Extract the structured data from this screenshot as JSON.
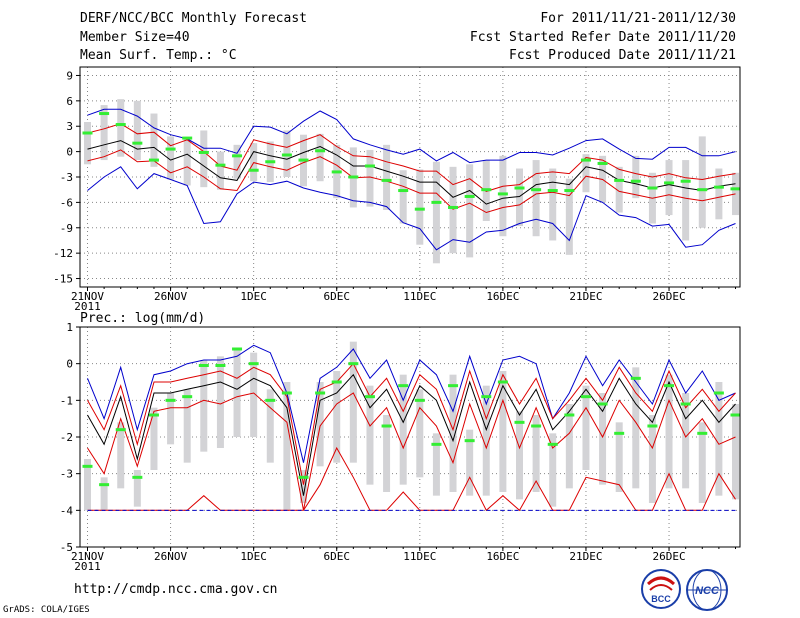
{
  "header": {
    "title": "DERF/NCC/BCC Monthly Forecast",
    "member_size": "Member Size=40",
    "variable": "Mean Surf. Temp.: °C",
    "period": "For 2011/11/21-2011/12/30",
    "started_refer": "Fcst Started Refer Date 2011/11/20",
    "produced": "Fcst Produced Date 2011/11/21"
  },
  "footer": {
    "url": "http://cmdp.ncc.cma.gov.cn",
    "credit": "GrADS: COLA/IGES",
    "logo_left_text": "BCC",
    "logo_right_text": "NCC"
  },
  "colors": {
    "mean": "#000000",
    "std_band": "#dd0000",
    "extreme": "#0000cc",
    "box": "#d3d3d6",
    "median": "#33ee33",
    "grid": "#888888"
  },
  "chart_data": [
    {
      "type": "line",
      "title": "",
      "ylabel": "Mean Surf. Temp.: °C",
      "x_tick_labels": [
        "21NOV\n2011",
        "26NOV",
        "1DEC",
        "6DEC",
        "11DEC",
        "16DEC",
        "21DEC",
        "26DEC"
      ],
      "x_tick_days": [
        1,
        6,
        11,
        16,
        21,
        26,
        31,
        36
      ],
      "y_ticks": [
        9,
        6,
        3,
        0,
        -3,
        -6,
        -9,
        -12,
        -15
      ],
      "ylim": [
        -16,
        10
      ],
      "days": [
        1,
        2,
        3,
        4,
        5,
        6,
        7,
        8,
        9,
        10,
        11,
        12,
        13,
        14,
        15,
        16,
        17,
        18,
        19,
        20,
        21,
        22,
        23,
        24,
        25,
        26,
        27,
        28,
        29,
        30,
        31,
        32,
        33,
        34,
        35,
        36,
        37,
        38,
        39,
        40
      ],
      "series": [
        {
          "name": "mean",
          "color": "black",
          "values": [
            0.3,
            0.8,
            1.3,
            0.3,
            0.5,
            -1.0,
            -0.3,
            -1.7,
            -3.1,
            -3.4,
            0.0,
            -0.5,
            -0.9,
            -0.1,
            0.6,
            -0.4,
            -1.7,
            -1.7,
            -2.3,
            -2.9,
            -3.6,
            -3.6,
            -5.4,
            -4.6,
            -6.2,
            -5.5,
            -5.3,
            -3.9,
            -3.6,
            -3.9,
            -1.8,
            -2.2,
            -3.4,
            -3.8,
            -4.3,
            -3.9,
            -4.3,
            -4.6,
            -4.1,
            -3.8
          ]
        },
        {
          "name": "mean+sd",
          "color": "red",
          "values": [
            2.2,
            2.7,
            3.3,
            2.1,
            2.3,
            0.7,
            1.4,
            0.0,
            -1.7,
            -2.2,
            1.4,
            0.9,
            0.5,
            1.3,
            2.0,
            0.6,
            -0.5,
            -0.6,
            -1.2,
            -1.7,
            -2.3,
            -2.3,
            -3.9,
            -3.2,
            -4.7,
            -4.1,
            -3.9,
            -2.6,
            -2.4,
            -2.6,
            -0.7,
            -1.0,
            -2.1,
            -2.6,
            -3.0,
            -2.6,
            -3.1,
            -3.3,
            -2.9,
            -2.6
          ]
        },
        {
          "name": "mean-sd",
          "color": "red",
          "values": [
            -1.1,
            -0.6,
            0.2,
            -1.2,
            -1.1,
            -2.5,
            -1.8,
            -3.0,
            -4.4,
            -4.6,
            -1.3,
            -1.8,
            -2.2,
            -1.3,
            -0.6,
            -1.6,
            -3.1,
            -3.0,
            -3.5,
            -4.1,
            -4.9,
            -4.9,
            -6.8,
            -6.1,
            -7.2,
            -6.6,
            -6.3,
            -5.0,
            -4.8,
            -5.2,
            -2.9,
            -3.3,
            -4.7,
            -5.1,
            -5.5,
            -5.1,
            -5.5,
            -5.8,
            -5.4,
            -5.0
          ]
        },
        {
          "name": "max",
          "color": "blue",
          "values": [
            4.3,
            5.0,
            5.0,
            4.2,
            2.8,
            2.0,
            1.5,
            0.4,
            0.4,
            -0.2,
            3.0,
            2.9,
            2.1,
            3.6,
            4.8,
            3.8,
            1.5,
            0.8,
            0.2,
            -0.3,
            0.3,
            -1.1,
            -0.1,
            -1.3,
            -1.0,
            -1.0,
            -0.1,
            -0.1,
            -0.4,
            0.4,
            1.3,
            1.5,
            0.3,
            -0.8,
            -0.9,
            0.5,
            0.5,
            -0.5,
            -0.5,
            0.0
          ]
        },
        {
          "name": "min",
          "color": "blue",
          "values": [
            -4.6,
            -3.0,
            -1.8,
            -4.4,
            -2.6,
            -3.3,
            -4.0,
            -8.5,
            -8.3,
            -5.0,
            -3.6,
            -3.9,
            -3.5,
            -4.3,
            -4.8,
            -5.2,
            -5.8,
            -6.0,
            -6.5,
            -8.4,
            -9.1,
            -11.6,
            -10.4,
            -10.7,
            -9.5,
            -9.3,
            -8.5,
            -8.0,
            -8.5,
            -10.5,
            -5.2,
            -6.0,
            -7.5,
            -7.8,
            -8.8,
            -8.6,
            -11.3,
            -11.0,
            -9.3,
            -8.5
          ]
        },
        {
          "name": "median",
          "color": "green",
          "values": [
            2.2,
            4.5,
            3.2,
            1.0,
            -1.0,
            0.3,
            1.6,
            -0.1,
            -1.6,
            -0.5,
            -2.2,
            -1.2,
            -0.4,
            -1.0,
            0.1,
            -2.4,
            -3.0,
            -1.7,
            -3.4,
            -4.6,
            -6.8,
            -6.0,
            -6.6,
            -5.3,
            -4.5,
            -5.0,
            -4.3,
            -4.5,
            -4.6,
            -4.6,
            -1.0,
            -1.4,
            -3.4,
            -3.5,
            -4.3,
            -3.7,
            -3.5,
            -4.5,
            -4.2,
            -4.4
          ]
        },
        {
          "name": "box_top",
          "color": "gray",
          "values": [
            3.5,
            5.5,
            6.2,
            6.0,
            4.5,
            1.8,
            1.5,
            2.5,
            0.0,
            0.8,
            1.0,
            1.2,
            2.5,
            2.0,
            2.1,
            0.8,
            0.5,
            0.2,
            0.8,
            -2.2,
            -2.1,
            -1.2,
            -1.8,
            -1.5,
            -1.0,
            -0.5,
            -2.0,
            -1.0,
            -2.0,
            -3.2,
            -0.3,
            -0.5,
            -1.8,
            -0.5,
            -2.5,
            -1.0,
            -1.0,
            1.8,
            -2.0,
            -2.5
          ]
        },
        {
          "name": "box_bottom",
          "color": "gray",
          "values": [
            -1.5,
            -1.0,
            -0.6,
            -1.0,
            -1.8,
            -3.3,
            -4.0,
            -4.2,
            -4.5,
            -3.2,
            -3.5,
            -3.6,
            -3.0,
            -4.1,
            -3.5,
            -5.5,
            -6.6,
            -6.5,
            -6.9,
            -8.5,
            -11.0,
            -13.2,
            -12.0,
            -12.5,
            -8.2,
            -10.0,
            -8.8,
            -10.0,
            -10.5,
            -12.2,
            -4.8,
            -6.0,
            -7.2,
            -5.5,
            -8.5,
            -7.5,
            -10.5,
            -9.0,
            -8.0,
            -7.5
          ]
        }
      ]
    },
    {
      "type": "line",
      "title": "Prec.: log(mm/d)",
      "ylabel": "Prec.: log(mm/d)",
      "x_tick_labels": [
        "21NOV\n2011",
        "26NOV",
        "1DEC",
        "6DEC",
        "11DEC",
        "16DEC",
        "21DEC",
        "26DEC"
      ],
      "x_tick_days": [
        1,
        6,
        11,
        16,
        21,
        26,
        31,
        36
      ],
      "y_ticks": [
        1,
        0,
        -1,
        -2,
        -3,
        -4,
        -5
      ],
      "ylim": [
        -5,
        1
      ],
      "days": [
        1,
        2,
        3,
        4,
        5,
        6,
        7,
        8,
        9,
        10,
        11,
        12,
        13,
        14,
        15,
        16,
        17,
        18,
        19,
        20,
        21,
        22,
        23,
        24,
        25,
        26,
        27,
        28,
        29,
        30,
        31,
        32,
        33,
        34,
        35,
        36,
        37,
        38,
        39,
        40
      ],
      "series": [
        {
          "name": "mean",
          "color": "black",
          "values": [
            -1.4,
            -2.2,
            -0.9,
            -2.6,
            -0.8,
            -0.8,
            -0.7,
            -0.6,
            -0.5,
            -0.7,
            -0.4,
            -0.6,
            -1.2,
            -3.6,
            -1.0,
            -0.8,
            -0.3,
            -1.2,
            -0.7,
            -1.6,
            -0.6,
            -1.0,
            -2.1,
            -0.5,
            -1.8,
            -0.6,
            -1.4,
            -0.7,
            -1.8,
            -1.3,
            -0.7,
            -1.3,
            -0.4,
            -1.1,
            -1.6,
            -0.5,
            -1.5,
            -1.0,
            -1.6,
            -1.1
          ]
        },
        {
          "name": "mean+sd",
          "color": "red",
          "values": [
            -1.0,
            -1.8,
            -0.6,
            -2.2,
            -0.5,
            -0.5,
            -0.4,
            -0.3,
            -0.2,
            -0.4,
            -0.1,
            -0.3,
            -0.9,
            -3.3,
            -0.7,
            -0.5,
            0.0,
            -0.9,
            -0.4,
            -1.3,
            -0.3,
            -0.7,
            -1.8,
            -0.2,
            -1.5,
            -0.3,
            -1.1,
            -0.4,
            -1.5,
            -1.0,
            -0.4,
            -1.0,
            -0.1,
            -0.8,
            -1.3,
            -0.2,
            -1.2,
            -0.7,
            -1.3,
            -0.8
          ]
        },
        {
          "name": "mean-sd",
          "color": "red",
          "values": [
            -2.3,
            -3.0,
            -1.5,
            -2.8,
            -1.3,
            -1.2,
            -1.2,
            -1.0,
            -1.1,
            -0.9,
            -0.8,
            -1.2,
            -1.6,
            -4.0,
            -1.7,
            -1.1,
            -0.8,
            -1.7,
            -1.2,
            -2.3,
            -1.2,
            -1.7,
            -2.7,
            -1.1,
            -2.3,
            -1.0,
            -2.3,
            -1.2,
            -2.3,
            -1.9,
            -1.2,
            -2.0,
            -1.0,
            -1.6,
            -2.3,
            -1.0,
            -2.0,
            -1.5,
            -2.2,
            -2.0
          ]
        },
        {
          "name": "max",
          "color": "blue",
          "values": [
            -0.4,
            -1.5,
            -0.1,
            -1.8,
            -0.3,
            -0.2,
            0.0,
            0.1,
            0.1,
            0.2,
            0.5,
            0.3,
            -0.8,
            -2.7,
            -0.4,
            -0.1,
            0.4,
            -0.4,
            0.1,
            -1.0,
            0.1,
            -0.3,
            -1.3,
            0.2,
            -1.1,
            0.1,
            0.2,
            0.0,
            -1.5,
            -0.8,
            0.2,
            -0.6,
            0.1,
            -0.5,
            -1.1,
            0.1,
            -0.8,
            -0.2,
            -1.0,
            -0.8
          ]
        },
        {
          "name": "min",
          "color": "red",
          "values": [
            -4.0,
            -4.0,
            -4.0,
            -4.0,
            -4.0,
            -4.0,
            -4.0,
            -3.6,
            -4.0,
            -4.0,
            -4.0,
            -4.0,
            -4.0,
            -4.0,
            -3.3,
            -2.3,
            -3.1,
            -4.0,
            -4.0,
            -3.5,
            -4.0,
            -4.0,
            -4.0,
            -3.1,
            -4.0,
            -3.6,
            -4.0,
            -3.2,
            -4.0,
            -4.0,
            -3.1,
            -3.2,
            -3.3,
            -4.0,
            -4.0,
            -3.0,
            -4.0,
            -4.0,
            -3.0,
            -3.7
          ]
        },
        {
          "name": "median",
          "color": "green",
          "values": [
            -2.8,
            -3.3,
            -1.8,
            -3.1,
            -1.4,
            -1.0,
            -0.9,
            -0.05,
            -0.05,
            0.4,
            0.0,
            -1.0,
            -0.8,
            -3.1,
            -0.8,
            -0.5,
            0.0,
            -0.9,
            -1.7,
            -0.6,
            -1.0,
            -2.2,
            -0.6,
            -2.1,
            -0.9,
            -0.5,
            -1.6,
            -1.7,
            -2.2,
            -1.4,
            -0.9,
            -1.1,
            -1.9,
            -0.4,
            -1.7,
            -0.6,
            -1.1,
            -1.9,
            -0.8,
            -1.4
          ]
        },
        {
          "name": "box_top",
          "color": "gray",
          "values": [
            -2.6,
            -3.1,
            -1.6,
            -2.9,
            -1.2,
            -0.8,
            -0.7,
            0.1,
            0.2,
            0.4,
            0.3,
            -0.7,
            -0.5,
            -2.9,
            -0.5,
            -0.2,
            0.6,
            -0.6,
            -1.4,
            -0.3,
            -0.7,
            -1.9,
            -0.3,
            -1.8,
            -0.6,
            -0.2,
            -1.3,
            -1.4,
            -1.9,
            -1.1,
            -0.6,
            -0.8,
            -1.6,
            -0.1,
            -1.4,
            -0.3,
            -0.8,
            -1.6,
            -0.5,
            -1.1
          ]
        },
        {
          "name": "box_bottom",
          "color": "gray",
          "values": [
            -4.0,
            -4.0,
            -3.4,
            -3.9,
            -2.9,
            -2.2,
            -2.7,
            -2.4,
            -2.3,
            -2.0,
            -2.0,
            -2.7,
            -4.0,
            -3.8,
            -2.8,
            -2.7,
            -2.7,
            -3.3,
            -3.5,
            -3.3,
            -3.1,
            -3.6,
            -3.5,
            -3.6,
            -3.6,
            -3.5,
            -3.7,
            -3.5,
            -3.9,
            -3.4,
            -2.9,
            -3.3,
            -3.5,
            -3.4,
            -3.8,
            -3.4,
            -3.4,
            -3.8,
            -3.6,
            -3.7
          ]
        }
      ]
    }
  ]
}
